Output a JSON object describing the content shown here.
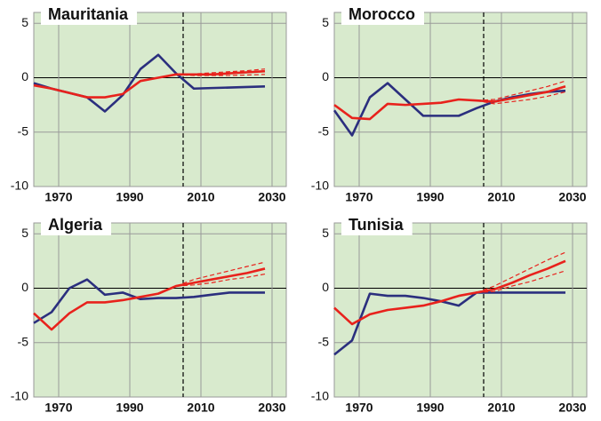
{
  "chart_data": [
    {
      "type": "line",
      "title": "Mauritania",
      "x": [
        1963,
        1968,
        1973,
        1978,
        1983,
        1988,
        1993,
        1998,
        2003,
        2008,
        2013,
        2018,
        2023,
        2028,
        2033
      ],
      "series": [
        {
          "color": "#2b2f7e",
          "values": [
            -0.5,
            -1.0,
            -1.4,
            -1.8,
            -3.1,
            -1.6,
            0.8,
            2.1,
            0.4,
            -1.0,
            -0.95,
            -0.9,
            -0.85,
            -0.8,
            null
          ]
        },
        {
          "color": "#e8221c",
          "values": [
            -0.7,
            -1.0,
            -1.4,
            -1.8,
            -1.8,
            -1.5,
            -0.3,
            0.0,
            0.3,
            0.3,
            0.3,
            0.4,
            0.5,
            0.6,
            null
          ]
        },
        {
          "color": "#e8221c",
          "dash": true,
          "values": [
            null,
            null,
            null,
            null,
            null,
            null,
            null,
            null,
            0.3,
            0.35,
            0.45,
            0.55,
            0.65,
            0.8,
            null
          ]
        },
        {
          "color": "#e8221c",
          "dash": true,
          "values": [
            null,
            null,
            null,
            null,
            null,
            null,
            null,
            null,
            0.3,
            0.2,
            0.2,
            0.2,
            0.25,
            0.3,
            null
          ]
        }
      ],
      "xlim": [
        1963,
        2034
      ],
      "xticks": [
        1970,
        1990,
        2010,
        2030
      ],
      "ylim": [
        -10,
        6
      ],
      "yticks": [
        -10,
        -5,
        0,
        5
      ],
      "divider": 2005,
      "grid": true
    },
    {
      "type": "line",
      "title": "Morocco",
      "x": [
        1963,
        1968,
        1973,
        1978,
        1983,
        1988,
        1993,
        1998,
        2003,
        2008,
        2013,
        2018,
        2023,
        2028,
        2033
      ],
      "series": [
        {
          "color": "#2b2f7e",
          "values": [
            -3.0,
            -5.3,
            -1.8,
            -0.5,
            -2.0,
            -3.5,
            -3.5,
            -3.5,
            -2.8,
            -2.2,
            -1.8,
            -1.5,
            -1.3,
            -1.2,
            null
          ]
        },
        {
          "color": "#e8221c",
          "values": [
            -2.5,
            -3.7,
            -3.8,
            -2.4,
            -2.5,
            -2.4,
            -2.3,
            -2.0,
            -2.1,
            -2.2,
            -1.9,
            -1.6,
            -1.3,
            -0.8,
            null
          ]
        },
        {
          "color": "#e8221c",
          "dash": true,
          "values": [
            null,
            null,
            null,
            null,
            null,
            null,
            null,
            null,
            -2.1,
            -2.0,
            -1.6,
            -1.2,
            -0.8,
            -0.3,
            null
          ]
        },
        {
          "color": "#e8221c",
          "dash": true,
          "values": [
            null,
            null,
            null,
            null,
            null,
            null,
            null,
            null,
            -2.1,
            -2.4,
            -2.2,
            -2.0,
            -1.7,
            -1.3,
            null
          ]
        }
      ],
      "xlim": [
        1963,
        2034
      ],
      "xticks": [
        1970,
        1990,
        2010,
        2030
      ],
      "ylim": [
        -10,
        6
      ],
      "yticks": [
        -10,
        -5,
        0,
        5
      ],
      "divider": 2005,
      "grid": true
    },
    {
      "type": "line",
      "title": "Algeria",
      "x": [
        1963,
        1968,
        1973,
        1978,
        1983,
        1988,
        1993,
        1998,
        2003,
        2008,
        2013,
        2018,
        2023,
        2028,
        2033
      ],
      "series": [
        {
          "color": "#2b2f7e",
          "values": [
            -3.2,
            -2.2,
            0.0,
            0.8,
            -0.6,
            -0.4,
            -1.0,
            -0.9,
            -0.9,
            -0.8,
            -0.6,
            -0.4,
            -0.4,
            -0.4,
            null
          ]
        },
        {
          "color": "#e8221c",
          "values": [
            -2.3,
            -3.8,
            -2.3,
            -1.3,
            -1.3,
            -1.1,
            -0.8,
            -0.5,
            0.2,
            0.5,
            0.8,
            1.1,
            1.4,
            1.8,
            null
          ]
        },
        {
          "color": "#e8221c",
          "dash": true,
          "values": [
            null,
            null,
            null,
            null,
            null,
            null,
            null,
            null,
            0.2,
            0.8,
            1.2,
            1.6,
            2.0,
            2.4,
            null
          ]
        },
        {
          "color": "#e8221c",
          "dash": true,
          "values": [
            null,
            null,
            null,
            null,
            null,
            null,
            null,
            null,
            0.2,
            0.3,
            0.5,
            0.8,
            1.0,
            1.3,
            null
          ]
        }
      ],
      "xlim": [
        1963,
        2034
      ],
      "xticks": [
        1970,
        1990,
        2010,
        2030
      ],
      "ylim": [
        -10,
        6
      ],
      "yticks": [
        -10,
        -5,
        0,
        5
      ],
      "divider": 2005,
      "grid": true
    },
    {
      "type": "line",
      "title": "Tunisia",
      "x": [
        1963,
        1968,
        1973,
        1978,
        1983,
        1988,
        1993,
        1998,
        2003,
        2008,
        2013,
        2018,
        2023,
        2028,
        2033
      ],
      "series": [
        {
          "color": "#2b2f7e",
          "values": [
            -6.1,
            -4.8,
            -0.5,
            -0.7,
            -0.7,
            -0.9,
            -1.2,
            -1.6,
            -0.4,
            -0.4,
            -0.4,
            -0.4,
            -0.4,
            -0.4,
            null
          ]
        },
        {
          "color": "#e8221c",
          "values": [
            -1.8,
            -3.3,
            -2.4,
            -2.0,
            -1.8,
            -1.6,
            -1.2,
            -0.7,
            -0.4,
            -0.1,
            0.5,
            1.2,
            1.8,
            2.5,
            null
          ]
        },
        {
          "color": "#e8221c",
          "dash": true,
          "values": [
            null,
            null,
            null,
            null,
            null,
            null,
            null,
            null,
            -0.4,
            0.2,
            1.0,
            1.8,
            2.6,
            3.3,
            null
          ]
        },
        {
          "color": "#e8221c",
          "dash": true,
          "values": [
            null,
            null,
            null,
            null,
            null,
            null,
            null,
            null,
            -0.4,
            -0.3,
            0.2,
            0.6,
            1.1,
            1.6,
            null
          ]
        }
      ],
      "xlim": [
        1963,
        2034
      ],
      "xticks": [
        1970,
        1990,
        2010,
        2030
      ],
      "ylim": [
        -10,
        6
      ],
      "yticks": [
        -10,
        -5,
        0,
        5
      ],
      "divider": 2005,
      "grid": true
    }
  ]
}
